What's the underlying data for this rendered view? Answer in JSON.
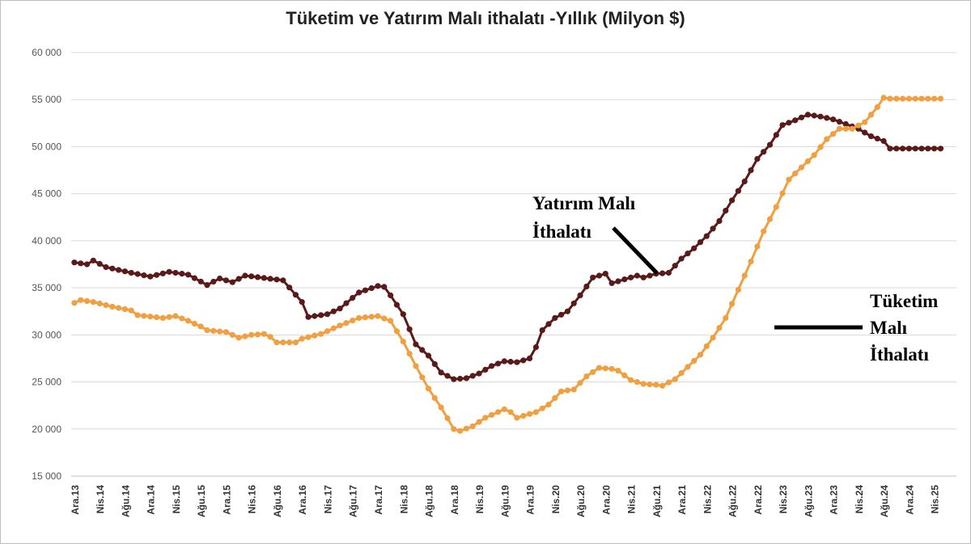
{
  "chart_data": {
    "type": "line",
    "title": "Tüketim ve Yatırım Malı ithalatı -Yıllık (Milyon $)",
    "xlabel": "",
    "ylabel": "",
    "ylim": [
      15000,
      60000
    ],
    "y_ticks": [
      15000,
      20000,
      25000,
      30000,
      35000,
      40000,
      45000,
      50000,
      55000,
      60000
    ],
    "y_tick_labels": [
      "15 000",
      "20 000",
      "25 000",
      "30 000",
      "35 000",
      "40 000",
      "45 000",
      "50 000",
      "55 000",
      "60 000"
    ],
    "x_tick_labels": [
      "Ara.13",
      "Nis.14",
      "Ağu.14",
      "Ara.14",
      "Nis.15",
      "Ağu.15",
      "Ara.15",
      "Nis.16",
      "Ağu.16",
      "Ara.16",
      "Nis.17",
      "Ağu.17",
      "Ara.17",
      "Nis.18",
      "Ağu.18",
      "Ara.18",
      "Nis.19",
      "Ağu.19",
      "Ara.19",
      "Nis.20",
      "Ağu.20",
      "Ara.20",
      "Nis.21",
      "Ağu.21",
      "Ara.21",
      "Nis.22",
      "Ağu.22",
      "Ara.22",
      "Nis.23",
      "Ağu.23",
      "Ara.23",
      "Nis.24",
      "Ağu.24",
      "Ara.24",
      "Nis.25"
    ],
    "tick_step_months": 4,
    "series": [
      {
        "name": "Yatırım Malı İthalatı",
        "color": "#5a1a1a",
        "keypoints": [
          [
            0,
            37700
          ],
          [
            2,
            37500
          ],
          [
            3,
            37900
          ],
          [
            5,
            37200
          ],
          [
            9,
            36600
          ],
          [
            12,
            36200
          ],
          [
            15,
            36700
          ],
          [
            18,
            36400
          ],
          [
            21,
            35300
          ],
          [
            23,
            36000
          ],
          [
            25,
            35600
          ],
          [
            27,
            36300
          ],
          [
            33,
            35800
          ],
          [
            36,
            33500
          ],
          [
            37,
            31900
          ],
          [
            40,
            32200
          ],
          [
            42,
            32800
          ],
          [
            45,
            34500
          ],
          [
            48,
            35200
          ],
          [
            49,
            35100
          ],
          [
            50,
            34200
          ],
          [
            52,
            32200
          ],
          [
            54,
            29000
          ],
          [
            56,
            27800
          ],
          [
            58,
            26000
          ],
          [
            60,
            25300
          ],
          [
            62,
            25400
          ],
          [
            64,
            25900
          ],
          [
            66,
            26700
          ],
          [
            68,
            27200
          ],
          [
            70,
            27100
          ],
          [
            72,
            27500
          ],
          [
            73,
            28700
          ],
          [
            74,
            30500
          ],
          [
            76,
            31800
          ],
          [
            78,
            32500
          ],
          [
            80,
            34200
          ],
          [
            82,
            36100
          ],
          [
            84,
            36500
          ],
          [
            85,
            35500
          ],
          [
            87,
            35900
          ],
          [
            89,
            36300
          ],
          [
            90,
            36100
          ],
          [
            92,
            36500
          ],
          [
            94,
            36600
          ],
          [
            96,
            38100
          ],
          [
            98,
            39200
          ],
          [
            100,
            40500
          ],
          [
            102,
            42100
          ],
          [
            104,
            44300
          ],
          [
            106,
            46300
          ],
          [
            108,
            48700
          ],
          [
            110,
            50200
          ],
          [
            112,
            52300
          ],
          [
            114,
            52800
          ],
          [
            116,
            53400
          ],
          [
            118,
            53200
          ],
          [
            120,
            52900
          ],
          [
            122,
            52400
          ],
          [
            124,
            51900
          ],
          [
            126,
            51100
          ],
          [
            128,
            50600
          ],
          [
            129,
            49800
          ]
        ]
      },
      {
        "name": "Tüketim Malı İthalatı",
        "color": "#f0a040",
        "keypoints": [
          [
            0,
            33400
          ],
          [
            1,
            33700
          ],
          [
            3,
            33500
          ],
          [
            6,
            33000
          ],
          [
            9,
            32600
          ],
          [
            10,
            32100
          ],
          [
            14,
            31800
          ],
          [
            16,
            32000
          ],
          [
            18,
            31500
          ],
          [
            20,
            30900
          ],
          [
            21,
            30500
          ],
          [
            24,
            30300
          ],
          [
            26,
            29700
          ],
          [
            28,
            30000
          ],
          [
            30,
            30100
          ],
          [
            31,
            29800
          ],
          [
            32,
            29200
          ],
          [
            35,
            29200
          ],
          [
            36,
            29600
          ],
          [
            39,
            30100
          ],
          [
            42,
            31000
          ],
          [
            45,
            31800
          ],
          [
            48,
            32000
          ],
          [
            50,
            31500
          ],
          [
            52,
            29300
          ],
          [
            54,
            26700
          ],
          [
            56,
            24300
          ],
          [
            58,
            22300
          ],
          [
            60,
            20000
          ],
          [
            61,
            19800
          ],
          [
            63,
            20300
          ],
          [
            65,
            21200
          ],
          [
            67,
            21800
          ],
          [
            68,
            22100
          ],
          [
            69,
            21800
          ],
          [
            70,
            21200
          ],
          [
            73,
            21800
          ],
          [
            75,
            22600
          ],
          [
            77,
            24000
          ],
          [
            79,
            24200
          ],
          [
            81,
            25600
          ],
          [
            83,
            26500
          ],
          [
            85,
            26400
          ],
          [
            86,
            26200
          ],
          [
            88,
            25200
          ],
          [
            90,
            24800
          ],
          [
            92,
            24700
          ],
          [
            93,
            24600
          ],
          [
            95,
            25300
          ],
          [
            97,
            26600
          ],
          [
            99,
            27900
          ],
          [
            101,
            29700
          ],
          [
            103,
            31800
          ],
          [
            105,
            34800
          ],
          [
            107,
            37800
          ],
          [
            109,
            41000
          ],
          [
            111,
            43600
          ],
          [
            113,
            46500
          ],
          [
            115,
            47800
          ],
          [
            117,
            49100
          ],
          [
            119,
            50800
          ],
          [
            121,
            51900
          ],
          [
            123,
            51900
          ],
          [
            125,
            52600
          ],
          [
            127,
            54200
          ],
          [
            128,
            55200
          ],
          [
            129,
            55100
          ]
        ]
      }
    ]
  },
  "annotations": {
    "yatirim": {
      "line1": "Yatırım Malı",
      "line2": "İthalatı"
    },
    "tuketim": {
      "line1": "Tüketim",
      "line2": "Malı",
      "line3": "İthalatı"
    }
  }
}
